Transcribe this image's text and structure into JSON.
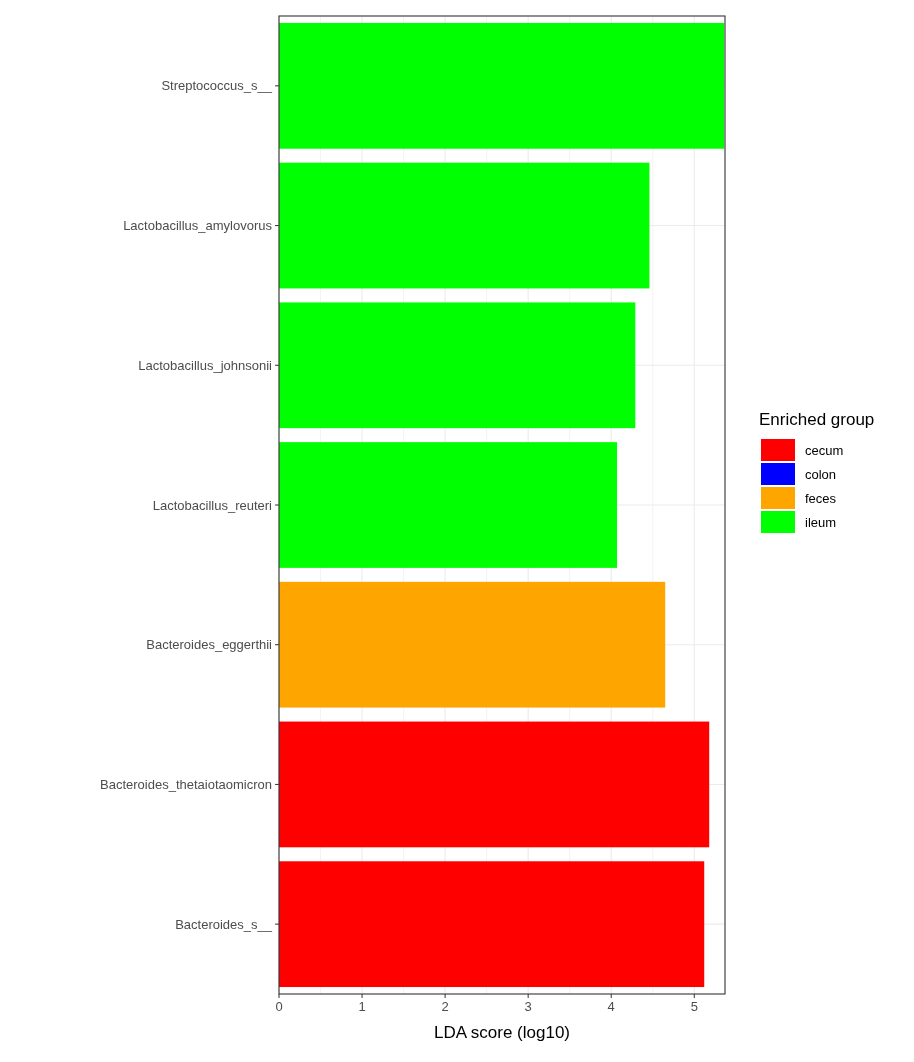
{
  "chart_data": {
    "type": "bar",
    "orientation": "horizontal",
    "xlabel": "LDA score (log10)",
    "legend_title": "Enriched group",
    "legend": "right",
    "categories": [
      "Streptococcus_s__",
      "Lactobacillus_amylovorus",
      "Lactobacillus_johnsonii",
      "Lactobacillus_reuteri",
      "Bacteroides_eggerthii",
      "Bacteroides_thetaiotaomicron",
      "Bacteroides_s__"
    ],
    "series": [
      {
        "name": "cecum",
        "color": "#ff0000",
        "values": [
          null,
          null,
          null,
          null,
          null,
          5.18,
          5.12
        ]
      },
      {
        "name": "colon",
        "color": "#0000ff",
        "values": [
          null,
          null,
          null,
          null,
          null,
          null,
          null
        ]
      },
      {
        "name": "feces",
        "color": "#ffa500",
        "values": [
          null,
          null,
          null,
          null,
          4.65,
          null,
          null
        ]
      },
      {
        "name": "ileum",
        "color": "#00ff00",
        "values": [
          5.36,
          4.46,
          4.29,
          4.07,
          null,
          null,
          null
        ]
      }
    ],
    "xlim": [
      0,
      5.37
    ],
    "xticks": [
      0,
      1,
      2,
      3,
      4,
      5
    ],
    "grid": true
  }
}
